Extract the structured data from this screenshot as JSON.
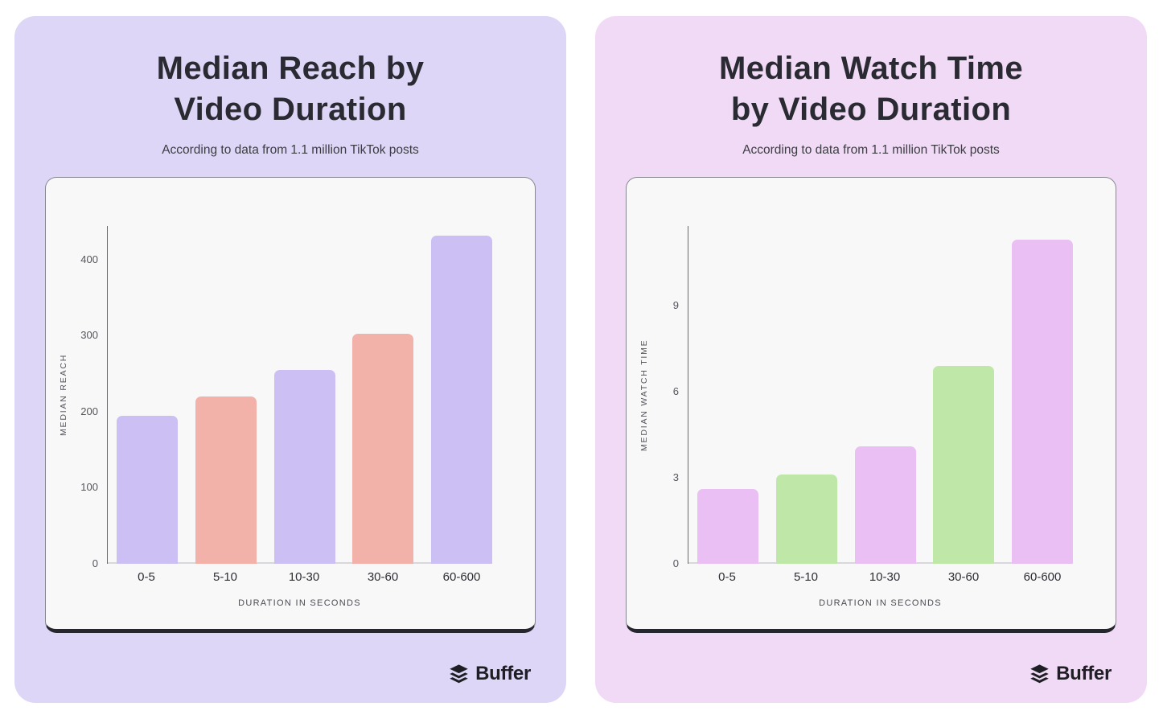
{
  "page": {
    "background": "#ffffff"
  },
  "footer": {
    "brand": "Buffer"
  },
  "chart_data": [
    {
      "type": "bar",
      "title": "Median Reach by Video Duration",
      "title_lines": [
        "Median Reach by",
        "Video Duration"
      ],
      "subtitle": "According to data from 1.1 million TikTok posts",
      "categories": [
        "0-5",
        "5-10",
        "10-30",
        "30-60",
        "60-600"
      ],
      "values": [
        195,
        220,
        255,
        303,
        432
      ],
      "xlabel": "DURATION IN SECONDS",
      "ylabel": "MEDIAN REACH",
      "yticks": [
        0,
        100,
        200,
        300,
        400
      ],
      "ylim": [
        0,
        445
      ],
      "grid": false,
      "legend": "none",
      "bar_colors": [
        "#cbbff4",
        "#f2b2aa"
      ],
      "card_bg": "#ded6f6",
      "panel_bg": "#f8f8f9"
    },
    {
      "type": "bar",
      "title": "Median Watch Time by Video Duration",
      "title_lines": [
        "Median Watch Time",
        "by Video Duration"
      ],
      "subtitle": "According to data from 1.1 million TikTok posts",
      "categories": [
        "0-5",
        "5-10",
        "10-30",
        "30-60",
        "60-600"
      ],
      "values": [
        2.6,
        3.1,
        4.1,
        6.9,
        11.3
      ],
      "xlabel": "DURATION IN SECONDS",
      "ylabel": "MEDIAN WATCH TIME",
      "yticks": [
        0,
        3,
        6,
        9
      ],
      "ylim": [
        0,
        11.8
      ],
      "grid": false,
      "legend": "none",
      "bar_colors": [
        "#eabff3",
        "#bee7a8"
      ],
      "card_bg": "#f0daf5",
      "panel_bg": "#f8f8f9"
    }
  ]
}
